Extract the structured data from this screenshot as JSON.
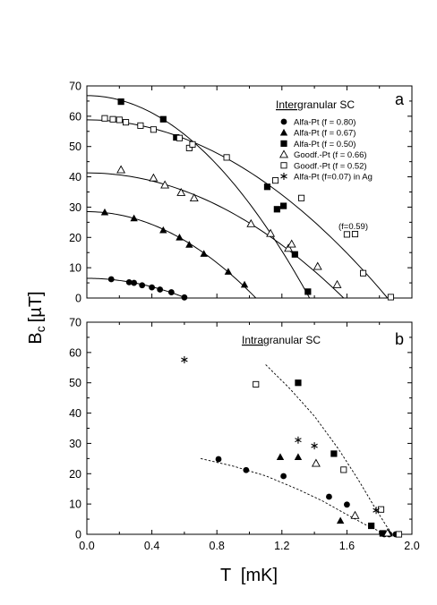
{
  "chart_data": [
    {
      "type": "scatter",
      "panel_label": "a",
      "title": "Intergranular SC",
      "title_underlined": "Inter",
      "title_rest": "granular SC",
      "xlim": [
        0.0,
        2.0
      ],
      "ylim": [
        0,
        70
      ],
      "xticks": [
        "0.0",
        "0.4",
        "0.8",
        "1.2",
        "1.6",
        "2.0"
      ],
      "yticks": [
        "0",
        "10",
        "20",
        "30",
        "40",
        "50",
        "60",
        "70"
      ],
      "legend_position": "top-right",
      "legend_note": "(f=0.59)",
      "series": [
        {
          "name": "Alfa-Pt (f = 0.80)",
          "marker": "filled-circle",
          "x": [
            0.15,
            0.26,
            0.29,
            0.34,
            0.4,
            0.45,
            0.52,
            0.6
          ],
          "y": [
            6.2,
            5.2,
            5.0,
            4.2,
            3.5,
            2.8,
            1.9,
            0.2
          ]
        },
        {
          "name": "Alfa-Pt (f = 0.67)",
          "marker": "filled-triangle",
          "x": [
            0.11,
            0.29,
            0.47,
            0.57,
            0.63,
            0.72,
            0.87,
            0.97
          ],
          "y": [
            28.3,
            26.3,
            22.4,
            20.0,
            17.6,
            14.6,
            8.7,
            4.4
          ]
        },
        {
          "name": "Alfa-Pt (f = 0.50)",
          "marker": "filled-square",
          "x": [
            0.21,
            0.47,
            0.55,
            1.11,
            1.17,
            1.21,
            1.28,
            1.36
          ],
          "y": [
            64.8,
            59.0,
            53.0,
            36.7,
            29.3,
            30.4,
            14.4,
            2.1
          ]
        },
        {
          "name": "Goodf.-Pt (f = 0.66)",
          "marker": "open-triangle",
          "x": [
            0.21,
            0.41,
            0.48,
            0.58,
            0.66,
            1.01,
            1.13,
            1.24,
            1.26,
            1.42,
            1.54
          ],
          "y": [
            42.3,
            39.6,
            37.3,
            34.8,
            33.0,
            24.5,
            21.3,
            16.4,
            17.8,
            10.4,
            4.4
          ]
        },
        {
          "name": "Goodf.-Pt (f = 0.52)",
          "marker": "open-square",
          "x": [
            0.11,
            0.16,
            0.2,
            0.24,
            0.33,
            0.41,
            0.57,
            0.63,
            0.65,
            0.86,
            1.16,
            1.32,
            1.6,
            1.65,
            1.7,
            1.87
          ],
          "y": [
            59.3,
            59.0,
            58.8,
            58.0,
            56.9,
            55.6,
            52.8,
            49.5,
            50.7,
            46.4,
            38.8,
            33.0,
            21.0,
            21.1,
            8.2,
            0.3
          ]
        },
        {
          "name": "Alfa-Pt (f=0.07) in Ag",
          "marker": "asterisk",
          "x": [],
          "y": []
        }
      ],
      "fits": [
        {
          "tc": 0.61,
          "b0": 6.5
        },
        {
          "tc": 1.04,
          "b0": 28.5
        },
        {
          "tc": 1.37,
          "b0": 66.8
        },
        {
          "tc": 1.58,
          "b0": 41.3
        },
        {
          "tc": 1.85,
          "b0": 58.8
        }
      ]
    },
    {
      "type": "scatter",
      "panel_label": "b",
      "title": "Intragranular SC",
      "title_underlined": "Intra",
      "title_rest": "granular SC",
      "xlim": [
        0.0,
        2.0
      ],
      "ylim": [
        0,
        70
      ],
      "xticks": [
        "0.0",
        "0.4",
        "0.8",
        "1.2",
        "1.6",
        "2.0"
      ],
      "yticks": [
        "0",
        "10",
        "20",
        "30",
        "40",
        "50",
        "60",
        "70"
      ],
      "xlabel": "T  [mK]",
      "series": [
        {
          "name": "Alfa-Pt (f = 0.80)",
          "marker": "filled-circle",
          "x": [
            0.81,
            0.98,
            1.21,
            1.49,
            1.6,
            1.83,
            1.86,
            1.9
          ],
          "y": [
            24.8,
            21.2,
            19.2,
            12.4,
            9.8,
            0.0,
            0.0,
            0.0
          ]
        },
        {
          "name": "Alfa-Pt (f = 0.67)",
          "marker": "filled-triangle",
          "x": [
            1.19,
            1.3,
            1.56,
            1.86
          ],
          "y": [
            25.5,
            25.5,
            4.5,
            0.3
          ]
        },
        {
          "name": "Alfa-Pt (f = 0.50)",
          "marker": "filled-square",
          "x": [
            1.3,
            1.52,
            1.75,
            1.82
          ],
          "y": [
            50.0,
            26.6,
            2.8,
            0.3
          ]
        },
        {
          "name": "Goodf.-Pt (f = 0.66)",
          "marker": "open-triangle",
          "x": [
            1.41,
            1.65,
            1.85
          ],
          "y": [
            23.4,
            6.2,
            0.4
          ]
        },
        {
          "name": "Goodf.-Pt (f = 0.52)",
          "marker": "open-square",
          "x": [
            1.04,
            1.58,
            1.81,
            1.92
          ],
          "y": [
            49.5,
            21.3,
            8.2,
            0.0
          ]
        },
        {
          "name": "Alfa-Pt (f=0.07) in Ag",
          "marker": "asterisk",
          "x": [
            0.6,
            1.3,
            1.4,
            1.78
          ],
          "y": [
            57.6,
            31.1,
            29.2,
            7.9
          ]
        }
      ],
      "guides": [
        {
          "x": [
            0.7,
            0.9,
            1.1,
            1.3,
            1.45,
            1.6,
            1.72,
            1.8,
            1.86
          ],
          "y": [
            25.0,
            22.5,
            19.3,
            14.8,
            11.0,
            6.5,
            3.0,
            1.0,
            0.0
          ]
        },
        {
          "x": [
            1.1,
            1.25,
            1.4,
            1.55,
            1.67,
            1.77,
            1.84,
            1.88
          ],
          "y": [
            56.0,
            48.0,
            39.0,
            28.0,
            18.0,
            9.0,
            3.0,
            0.0
          ]
        }
      ]
    }
  ],
  "shared_ylabel": "B",
  "shared_ylabel_sub": "c",
  "shared_ylabel_unit": "[µT]"
}
